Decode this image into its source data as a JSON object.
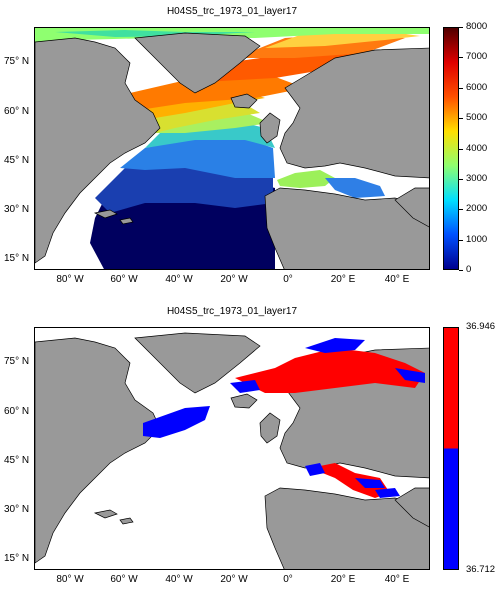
{
  "panels": [
    {
      "title": "H04S5_trc_1973_01_layer17",
      "lat_labels": [
        "75° N",
        "60° N",
        "45° N",
        "30° N",
        "15° N"
      ],
      "lon_labels": [
        "80° W",
        "60° W",
        "40° W",
        "20° W",
        "0°",
        "20° E",
        "40° E"
      ],
      "colorbar": {
        "type": "continuous",
        "min": 0,
        "max": 8000,
        "ticks": [
          "8000",
          "7000",
          "6000",
          "5000",
          "4000",
          "3000",
          "2000",
          "1000",
          "0"
        ],
        "colormap": [
          "#00008f",
          "#0050ff",
          "#00dfff",
          "#8fff70",
          "#ffdf00",
          "#ff5000",
          "#df0000",
          "#500000"
        ]
      }
    },
    {
      "title": "H04S5_trc_1973_01_layer17",
      "lat_labels": [
        "75° N",
        "60° N",
        "45° N",
        "30° N",
        "15° N"
      ],
      "lon_labels": [
        "80° W",
        "60° W",
        "40° W",
        "20° W",
        "0°",
        "20° E",
        "40° E"
      ],
      "colorbar": {
        "type": "two-class",
        "ticks": [
          "36.946",
          "36.712"
        ],
        "colors": [
          "#ff0000",
          "#0000ff"
        ]
      }
    }
  ],
  "colors": {
    "land": "#999999",
    "ocean": "#ffffff",
    "coast": "#000000"
  }
}
